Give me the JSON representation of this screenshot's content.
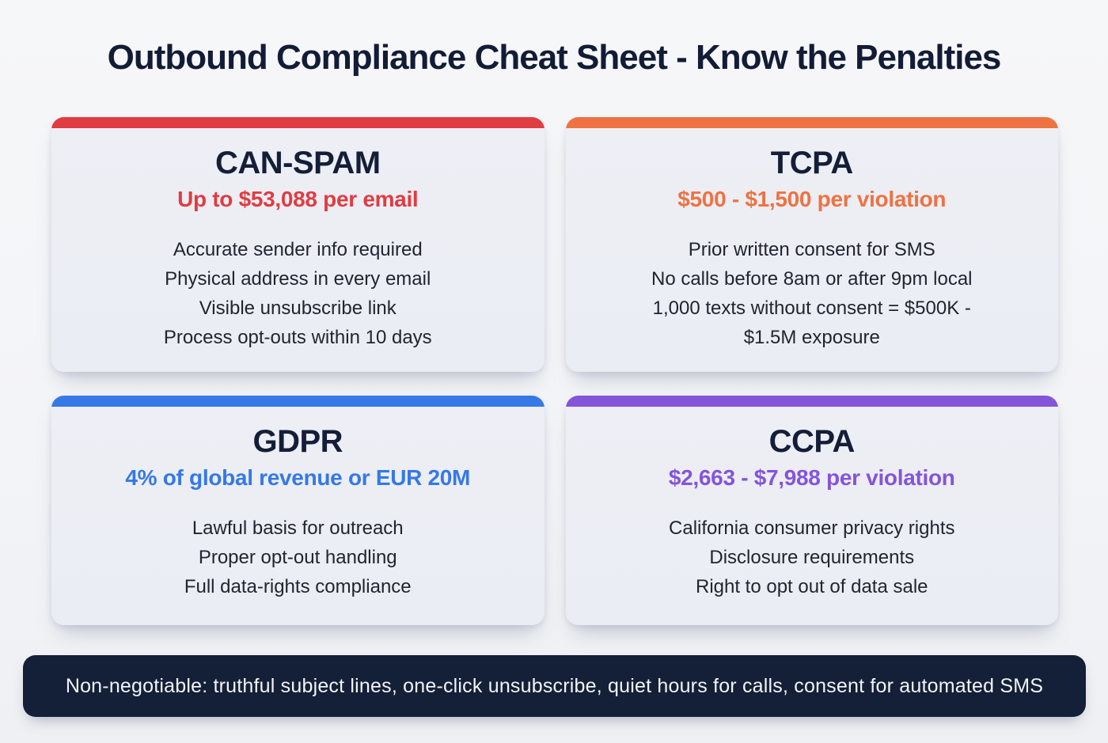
{
  "header": {
    "title": "Outbound Compliance Cheat Sheet - Know the Penalties"
  },
  "colors": {
    "page_background": "#f4f5f7",
    "card_background": "#eceef4",
    "heading_text": "#131c36",
    "body_text": "#21252e",
    "footer_background": "#141f38",
    "footer_text": "#f2f4f6",
    "can_spam_accent": "#e03c41",
    "tcpa_accent": "#ef7242",
    "gdpr_accent": "#3678e6",
    "ccpa_accent": "#8454d9"
  },
  "cards": {
    "can_spam": {
      "title": "CAN-SPAM",
      "penalty": "Up to $53,088 per email",
      "accent": "#e03c41",
      "lines": [
        "Accurate sender info required",
        "Physical address in every email",
        "Visible unsubscribe link",
        "Process opt-outs within 10 days"
      ]
    },
    "tcpa": {
      "title": "TCPA",
      "penalty": "$500 - $1,500 per violation",
      "accent": "#ef7242",
      "lines": [
        "Prior written consent for SMS",
        "No calls before 8am or after 9pm local",
        "1,000 texts without consent = $500K -",
        "$1.5M exposure"
      ]
    },
    "gdpr": {
      "title": "GDPR",
      "penalty": "4% of global revenue or EUR 20M",
      "accent": "#3678e6",
      "lines": [
        "Lawful basis for outreach",
        "Proper opt-out handling",
        "Full data-rights compliance"
      ]
    },
    "ccpa": {
      "title": "CCPA",
      "penalty": "$2,663 - $7,988 per violation",
      "accent": "#8454d9",
      "lines": [
        "California consumer privacy rights",
        "Disclosure requirements",
        "Right to opt out of data sale"
      ]
    }
  },
  "footer": {
    "note": "Non-negotiable: truthful subject lines, one-click unsubscribe, quiet hours for calls, consent for automated SMS"
  }
}
